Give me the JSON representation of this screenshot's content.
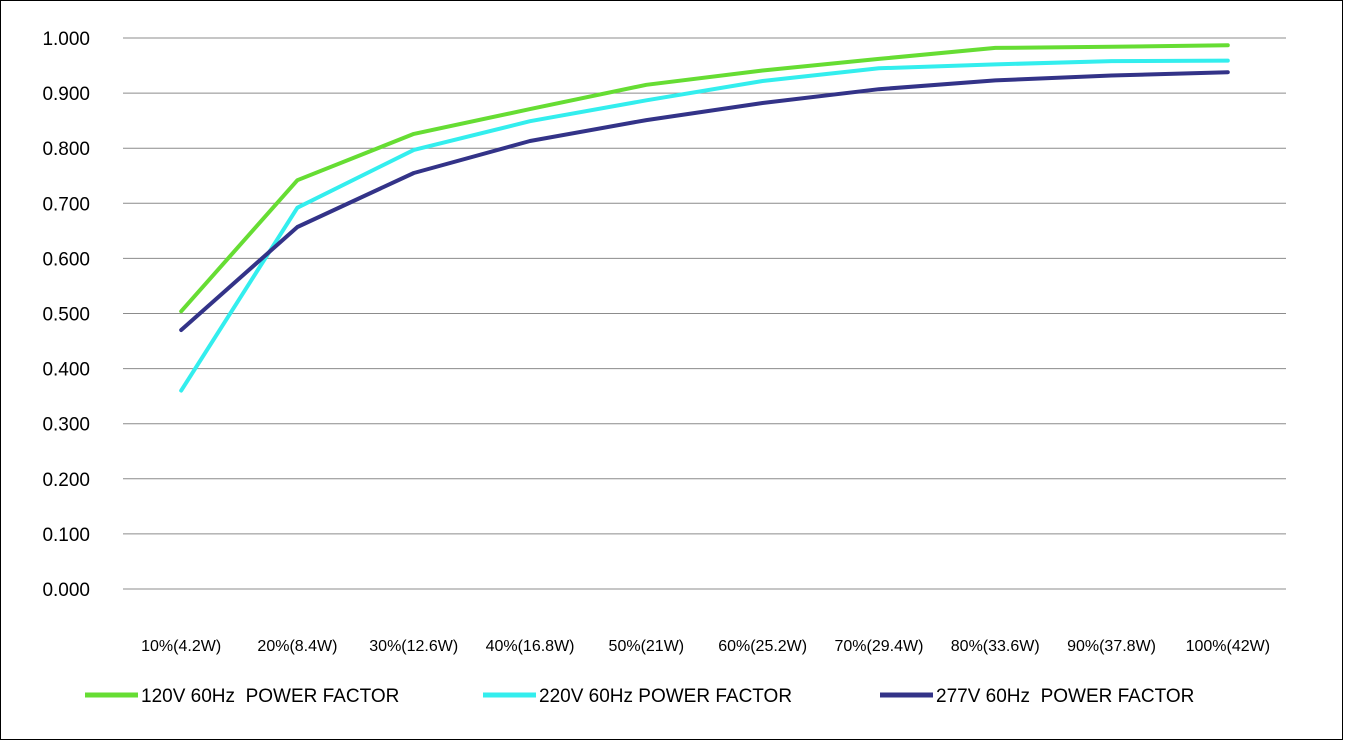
{
  "chart_data": {
    "type": "line",
    "title": "",
    "xlabel": "",
    "ylabel": "",
    "categories": [
      "10%(4.2W)",
      "20%(8.4W)",
      "30%(12.6W)",
      "40%(16.8W)",
      "50%(21W)",
      "60%(25.2W)",
      "70%(29.4W)",
      "80%(33.6W)",
      "90%(37.8W)",
      "100%(42W)"
    ],
    "ylim": [
      0,
      1
    ],
    "yticks": [
      "0.000",
      "0.100",
      "0.200",
      "0.300",
      "0.400",
      "0.500",
      "0.600",
      "0.700",
      "0.800",
      "0.900",
      "1.000"
    ],
    "grid": true,
    "legend_position": "bottom",
    "series": [
      {
        "name": "120V 60Hz  POWER FACTOR",
        "color": "#66dd33",
        "values": [
          0.504,
          0.742,
          0.826,
          0.871,
          0.915,
          0.941,
          0.962,
          0.982,
          0.984,
          0.987
        ]
      },
      {
        "name": "220V 60Hz POWER FACTOR",
        "color": "#33eeee",
        "values": [
          0.36,
          0.692,
          0.797,
          0.849,
          0.887,
          0.922,
          0.945,
          0.952,
          0.958,
          0.959
        ]
      },
      {
        "name": "277V 60Hz  POWER FACTOR",
        "color": "#333388",
        "values": [
          0.47,
          0.657,
          0.755,
          0.813,
          0.851,
          0.882,
          0.907,
          0.923,
          0.932,
          0.938
        ]
      }
    ]
  }
}
